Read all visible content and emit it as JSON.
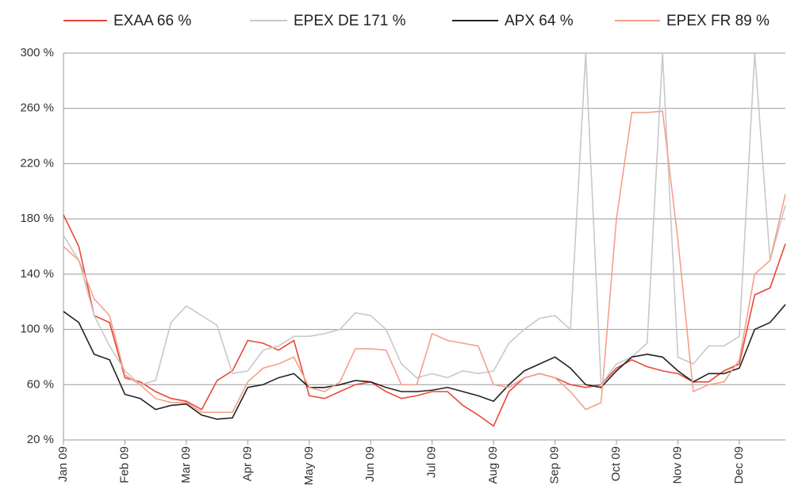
{
  "chart_data": {
    "type": "line",
    "categories": [
      "Jan 09",
      null,
      null,
      null,
      "Feb 09",
      null,
      null,
      null,
      "Mar 09",
      null,
      null,
      null,
      "Apr 09",
      null,
      null,
      null,
      "May 09",
      null,
      null,
      null,
      "Jun 09",
      null,
      null,
      null,
      "Jul 09",
      null,
      null,
      null,
      "Aug 09",
      null,
      null,
      null,
      "Sep 09",
      null,
      null,
      null,
      "Oct 09",
      null,
      null,
      null,
      "Nov 09",
      null,
      null,
      null,
      "Dec 09",
      null,
      null,
      null
    ],
    "series": [
      {
        "name": "EXAA 66 %",
        "color": "#e8473a",
        "values": [
          183,
          160,
          110,
          105,
          65,
          62,
          55,
          50,
          48,
          42,
          63,
          70,
          92,
          90,
          85,
          92,
          52,
          50,
          55,
          60,
          62,
          55,
          50,
          52,
          55,
          55,
          45,
          38,
          30,
          55,
          65,
          68,
          65,
          60,
          58,
          60,
          72,
          78,
          73,
          70,
          68,
          62,
          62,
          70,
          75,
          125,
          130,
          162
        ]
      },
      {
        "name": "EPEX DE 171 %",
        "color": "#c8c8c8",
        "values": [
          168,
          150,
          110,
          88,
          70,
          60,
          63,
          105,
          117,
          110,
          103,
          68,
          70,
          85,
          88,
          95,
          95,
          97,
          100,
          112,
          110,
          100,
          75,
          65,
          68,
          65,
          70,
          68,
          70,
          90,
          100,
          108,
          110,
          100,
          300,
          60,
          75,
          80,
          90,
          300,
          80,
          75,
          88,
          88,
          95,
          300,
          150,
          190
        ]
      },
      {
        "name": "APX 64 %",
        "color": "#222222",
        "values": [
          113,
          105,
          82,
          78,
          53,
          50,
          42,
          45,
          46,
          38,
          35,
          36,
          58,
          60,
          65,
          68,
          58,
          58,
          60,
          63,
          62,
          58,
          55,
          55,
          56,
          58,
          55,
          52,
          48,
          60,
          70,
          75,
          80,
          72,
          60,
          58,
          70,
          80,
          82,
          80,
          70,
          62,
          68,
          68,
          72,
          100,
          105,
          118
        ]
      },
      {
        "name": "EPEX FR 89 %",
        "color": "#f4a08a",
        "values": [
          160,
          150,
          122,
          110,
          67,
          60,
          50,
          47,
          47,
          40,
          40,
          40,
          62,
          72,
          75,
          80,
          58,
          55,
          62,
          86,
          86,
          85,
          60,
          60,
          97,
          92,
          90,
          88,
          60,
          58,
          65,
          68,
          65,
          55,
          42,
          47,
          180,
          257,
          257,
          258,
          165,
          55,
          60,
          62,
          78,
          140,
          150,
          198
        ]
      }
    ],
    "ylim": [
      20,
      300
    ],
    "yticks": [
      {
        "value": 20,
        "label": "20 %"
      },
      {
        "value": 60,
        "label": "60 %"
      },
      {
        "value": 100,
        "label": "100 %"
      },
      {
        "value": 140,
        "label": "140 %"
      },
      {
        "value": 180,
        "label": "180 %"
      },
      {
        "value": 220,
        "label": "220 %"
      },
      {
        "value": 260,
        "label": "260 %"
      },
      {
        "value": 300,
        "label": "300 %"
      }
    ],
    "grid": true
  }
}
